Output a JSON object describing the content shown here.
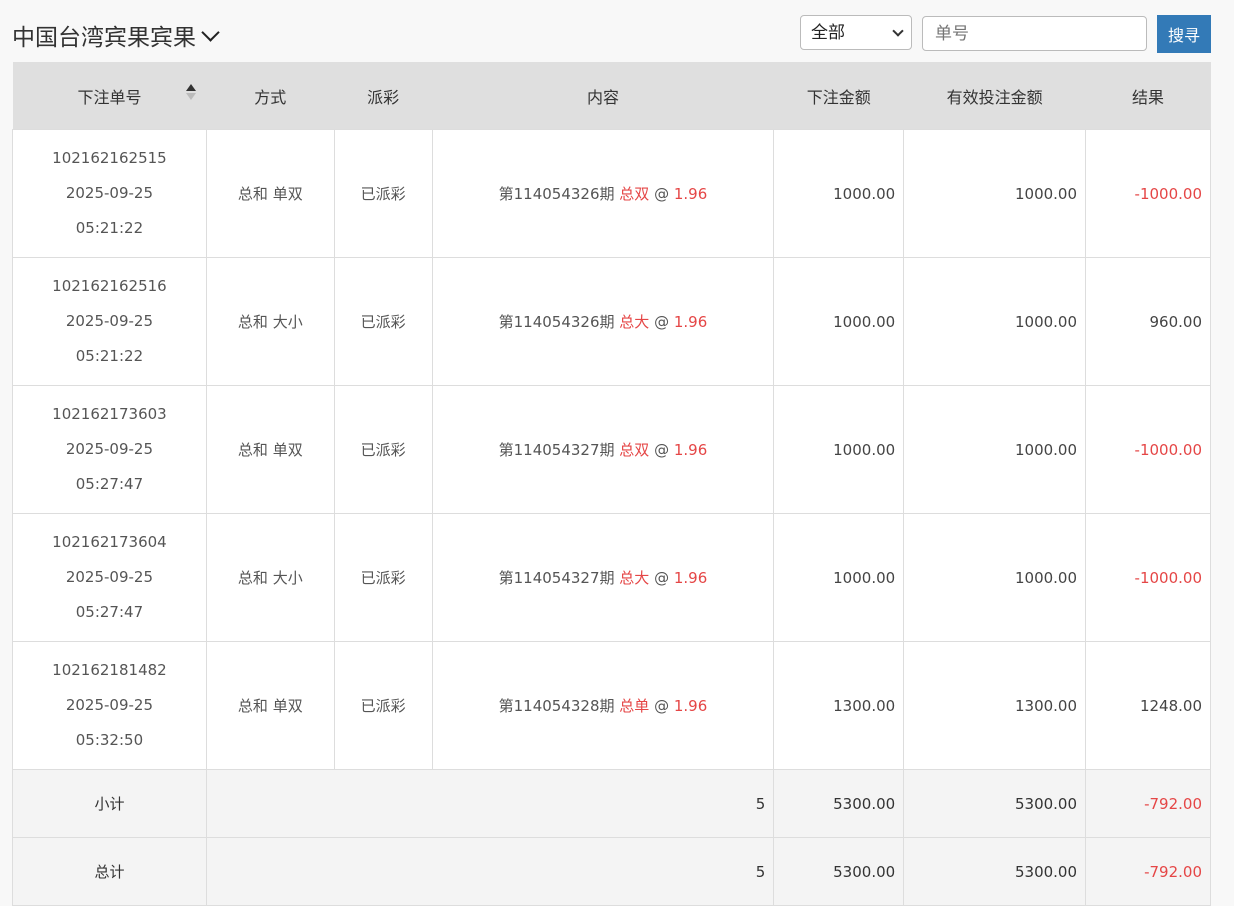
{
  "header": {
    "title": "中国台湾宾果宾果",
    "filter_selected": "全部",
    "search_placeholder": "单号",
    "search_button": "搜寻"
  },
  "columns": [
    "下注单号",
    "方式",
    "派彩",
    "内容",
    "下注金额",
    "有效投注金额",
    "结果"
  ],
  "rows": [
    {
      "id": "102162162515",
      "date": "2025-09-25",
      "time": "05:21:22",
      "method": "总和 单双",
      "payout": "已派彩",
      "period": "第114054326期",
      "pick": "总双",
      "at": "@",
      "odds": "1.96",
      "amount": "1000.00",
      "valid": "1000.00",
      "result": "-1000.00",
      "negative": true
    },
    {
      "id": "102162162516",
      "date": "2025-09-25",
      "time": "05:21:22",
      "method": "总和 大小",
      "payout": "已派彩",
      "period": "第114054326期",
      "pick": "总大",
      "at": "@",
      "odds": "1.96",
      "amount": "1000.00",
      "valid": "1000.00",
      "result": "960.00",
      "negative": false
    },
    {
      "id": "102162173603",
      "date": "2025-09-25",
      "time": "05:27:47",
      "method": "总和 单双",
      "payout": "已派彩",
      "period": "第114054327期",
      "pick": "总双",
      "at": "@",
      "odds": "1.96",
      "amount": "1000.00",
      "valid": "1000.00",
      "result": "-1000.00",
      "negative": true
    },
    {
      "id": "102162173604",
      "date": "2025-09-25",
      "time": "05:27:47",
      "method": "总和 大小",
      "payout": "已派彩",
      "period": "第114054327期",
      "pick": "总大",
      "at": "@",
      "odds": "1.96",
      "amount": "1000.00",
      "valid": "1000.00",
      "result": "-1000.00",
      "negative": true
    },
    {
      "id": "102162181482",
      "date": "2025-09-25",
      "time": "05:32:50",
      "method": "总和 单双",
      "payout": "已派彩",
      "period": "第114054328期",
      "pick": "总单",
      "at": "@",
      "odds": "1.96",
      "amount": "1300.00",
      "valid": "1300.00",
      "result": "1248.00",
      "negative": false
    }
  ],
  "summary": [
    {
      "label": "小计",
      "count": "5",
      "amount": "5300.00",
      "valid": "5300.00",
      "result": "-792.00"
    },
    {
      "label": "总计",
      "count": "5",
      "amount": "5300.00",
      "valid": "5300.00",
      "result": "-792.00"
    }
  ]
}
